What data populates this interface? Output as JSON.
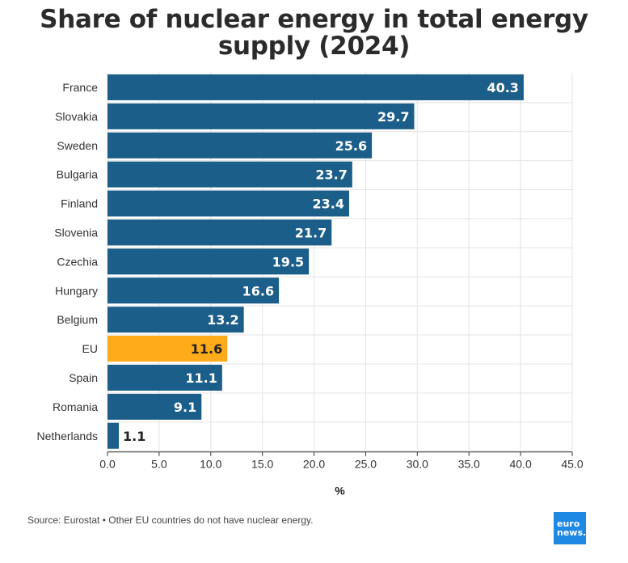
{
  "title_line1": "Share of nuclear energy in total energy",
  "title_line2": "supply (2024)",
  "footer": "Source: Eurostat • Other EU countries do not have nuclear energy.",
  "logo": {
    "line1": "euro",
    "line2": "news."
  },
  "colors": {
    "bar": "#1b5e8a",
    "highlight": "#ffab1a",
    "grid": "#e3e3e3"
  },
  "chart_data": {
    "type": "bar",
    "orientation": "horizontal",
    "categories": [
      "France",
      "Slovakia",
      "Sweden",
      "Bulgaria",
      "Finland",
      "Slovenia",
      "Czechia",
      "Hungary",
      "Belgium",
      "EU",
      "Spain",
      "Romania",
      "Netherlands"
    ],
    "values": [
      40.3,
      29.7,
      25.6,
      23.7,
      23.4,
      21.7,
      19.5,
      16.6,
      13.2,
      11.6,
      11.1,
      9.1,
      1.1
    ],
    "value_labels": [
      "40.3",
      "29.7",
      "25.6",
      "23.7",
      "23.4",
      "21.7",
      "19.5",
      "16.6",
      "13.2",
      "11.6",
      "11.1",
      "9.1",
      "1.1"
    ],
    "highlight": "EU",
    "xlabel": "%",
    "xlim": [
      0,
      45
    ],
    "xticks": [
      0,
      5,
      10,
      15,
      20,
      25,
      30,
      35,
      40,
      45
    ],
    "xtick_labels": [
      "0.0",
      "5.0",
      "10.0",
      "15.0",
      "20.0",
      "25.0",
      "30.0",
      "35.0",
      "40.0",
      "45.0"
    ],
    "grid": true
  }
}
